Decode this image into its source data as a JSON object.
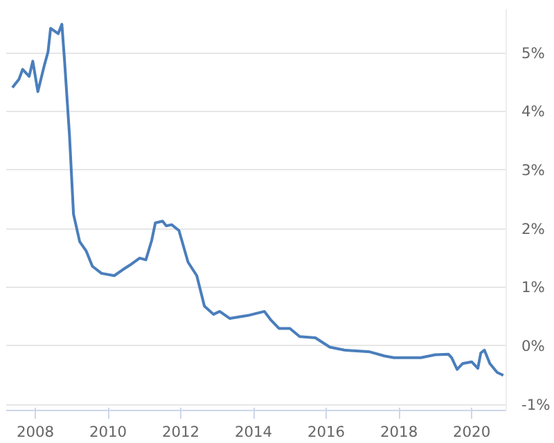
{
  "chart_data": {
    "type": "line",
    "x": [
      2007.37,
      2007.55,
      2007.65,
      2007.83,
      2007.93,
      2008.07,
      2008.24,
      2008.35,
      2008.42,
      2008.63,
      2008.73,
      2008.8,
      2008.94,
      2009.05,
      2009.22,
      2009.4,
      2009.57,
      2009.82,
      2010.17,
      2010.4,
      2010.6,
      2010.87,
      2011.04,
      2011.2,
      2011.3,
      2011.5,
      2011.6,
      2011.75,
      2011.95,
      2012.2,
      2012.44,
      2012.65,
      2012.9,
      2013.07,
      2013.35,
      2013.84,
      2014.3,
      2014.47,
      2014.7,
      2015.0,
      2015.27,
      2015.7,
      2016.1,
      2016.5,
      2017.2,
      2017.6,
      2017.86,
      2018.6,
      2019.0,
      2019.36,
      2019.45,
      2019.6,
      2019.75,
      2020.0,
      2020.17,
      2020.25,
      2020.35,
      2020.5,
      2020.7,
      2020.87
    ],
    "series": [
      {
        "color": "#4a7ebb",
        "values": [
          4.41,
          4.55,
          4.72,
          4.6,
          4.86,
          4.34,
          4.77,
          5.02,
          5.42,
          5.33,
          5.49,
          4.9,
          3.59,
          2.25,
          1.78,
          1.62,
          1.36,
          1.24,
          1.2,
          1.3,
          1.38,
          1.5,
          1.47,
          1.8,
          2.1,
          2.13,
          2.05,
          2.07,
          1.97,
          1.43,
          1.2,
          0.68,
          0.54,
          0.59,
          0.47,
          0.52,
          0.59,
          0.45,
          0.3,
          0.3,
          0.16,
          0.14,
          -0.02,
          -0.07,
          -0.1,
          -0.17,
          -0.2,
          -0.2,
          -0.15,
          -0.14,
          -0.2,
          -0.4,
          -0.3,
          -0.27,
          -0.38,
          -0.12,
          -0.07,
          -0.3,
          -0.45,
          -0.5
        ]
      }
    ],
    "xlim": [
      2007.2,
      2020.95
    ],
    "xticks": [
      2008,
      2010,
      2012,
      2014,
      2016,
      2018,
      2020
    ],
    "ylim": [
      -1.1,
      5.75
    ],
    "yticks": [
      {
        "value": -1,
        "label": "-1%"
      },
      {
        "value": 0,
        "label": "0%"
      },
      {
        "value": 1,
        "label": "1%"
      },
      {
        "value": 2,
        "label": "2%"
      },
      {
        "value": 3,
        "label": "3%"
      },
      {
        "value": 4,
        "label": "4%"
      },
      {
        "value": 5,
        "label": "5%"
      }
    ],
    "grid": "y",
    "line_style": "solid"
  }
}
